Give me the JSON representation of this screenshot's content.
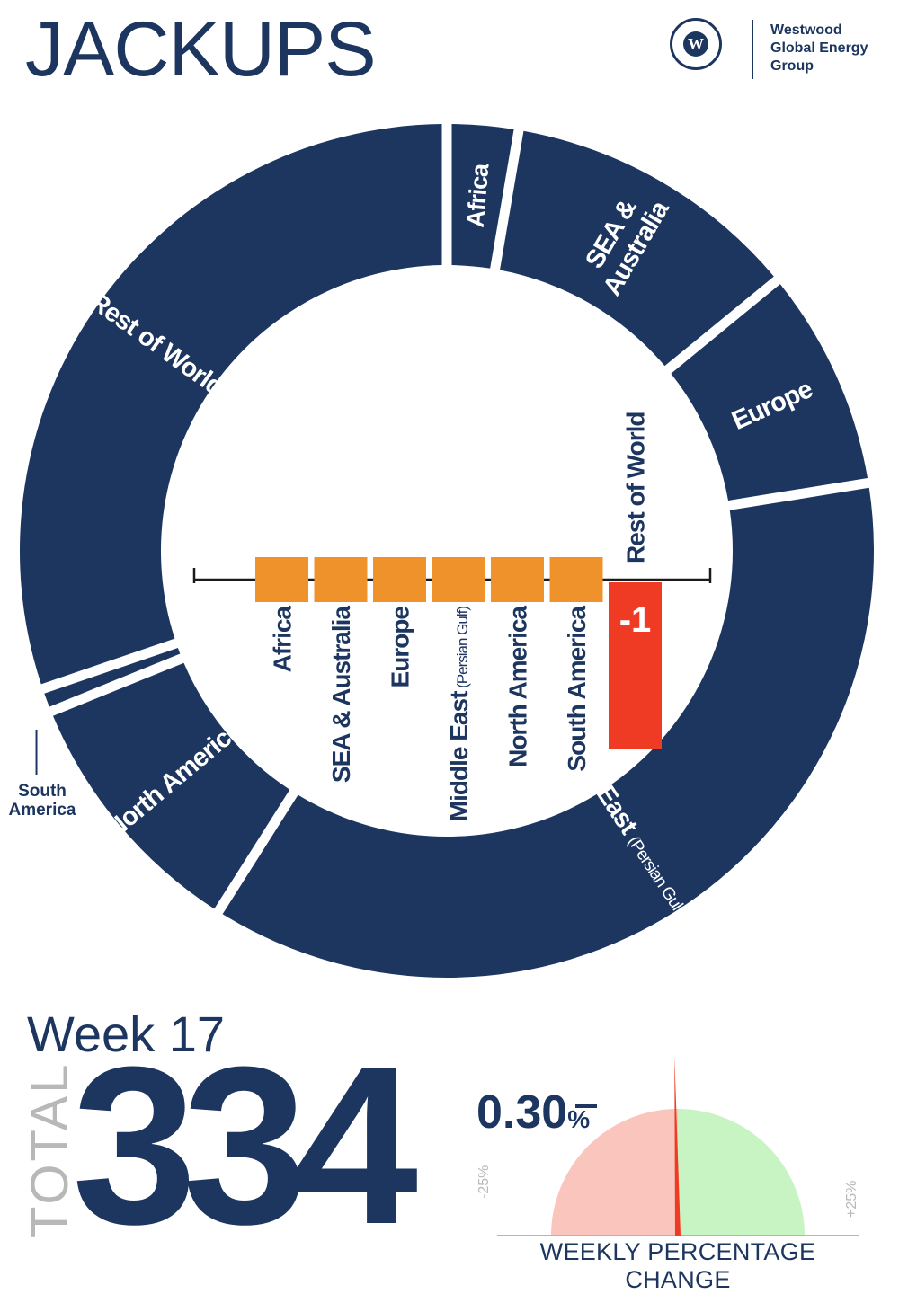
{
  "header": {
    "title": "JACKUPS",
    "logo_lines": [
      "Westwood",
      "Global Energy",
      "Group"
    ],
    "logo_letter": "W"
  },
  "colors": {
    "navy": "#1d3660",
    "orange": "#f0922b",
    "red": "#ef3b24",
    "gauge_negative": "#f9c5bd",
    "gauge_positive": "#c8f3c3"
  },
  "chart_data": [
    {
      "type": "pie",
      "categories": [
        "Africa",
        "SEA & Australia",
        "Europe",
        "Middle East",
        "North America",
        "South America",
        "Rest of World"
      ],
      "category_notes": [
        "",
        "",
        "",
        "(Persian Gulf & Red Sea)",
        "",
        "",
        ""
      ],
      "values": [
        9,
        38,
        28,
        122,
        33,
        3,
        101
      ]
    },
    {
      "type": "bar",
      "categories": [
        "Africa",
        "SEA & Australia",
        "Europe",
        "Middle East",
        "North America",
        "South America",
        "Rest of World"
      ],
      "category_notes": [
        "",
        "",
        "",
        "(Persian Gulf)",
        "",
        "",
        ""
      ],
      "values": [
        0,
        0,
        0,
        0,
        0,
        0,
        -1
      ],
      "data_labels": [
        "",
        "",
        "",
        "",
        "",
        "",
        "-1"
      ]
    },
    {
      "type": "gauge",
      "value": -0.3,
      "range": [
        -25,
        25
      ],
      "min_label": "-25%",
      "max_label": "+25%",
      "value_text": "0.30",
      "value_suffix": "%",
      "label": "WEEKLY PERCENTAGE CHANGE"
    }
  ],
  "summary": {
    "week": "Week 17",
    "total_label": "TOTAL",
    "total_value": "334"
  }
}
